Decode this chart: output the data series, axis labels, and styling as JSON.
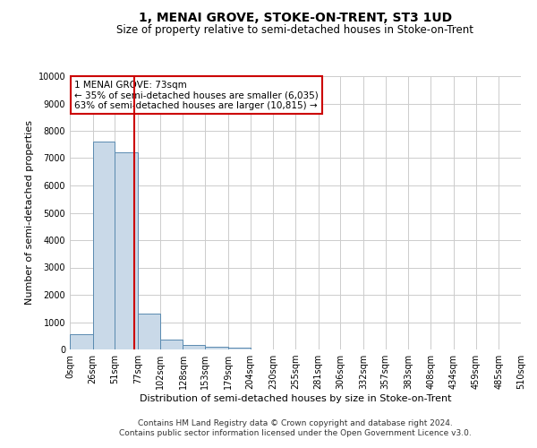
{
  "title": "1, MENAI GROVE, STOKE-ON-TRENT, ST3 1UD",
  "subtitle": "Size of property relative to semi-detached houses in Stoke-on-Trent",
  "xlabel": "Distribution of semi-detached houses by size in Stoke-on-Trent",
  "ylabel": "Number of semi-detached properties",
  "footer_line1": "Contains HM Land Registry data © Crown copyright and database right 2024.",
  "footer_line2": "Contains public sector information licensed under the Open Government Licence v3.0.",
  "annotation_title": "1 MENAI GROVE: 73sqm",
  "annotation_line1": "← 35% of semi-detached houses are smaller (6,035)",
  "annotation_line2": "63% of semi-detached houses are larger (10,815) →",
  "property_size_sqm": 73,
  "bar_left_edges": [
    0,
    26,
    51,
    77,
    102,
    128,
    153,
    179,
    204,
    230,
    255,
    281,
    306,
    332,
    357,
    383,
    408,
    434,
    459,
    485
  ],
  "bar_widths": [
    26,
    25,
    26,
    25,
    26,
    25,
    26,
    25,
    26,
    25,
    26,
    25,
    26,
    25,
    26,
    25,
    26,
    25,
    26,
    25
  ],
  "bar_heights": [
    550,
    7600,
    7200,
    1300,
    350,
    150,
    100,
    75,
    0,
    0,
    0,
    0,
    0,
    0,
    0,
    0,
    0,
    0,
    0,
    0
  ],
  "bar_color": "#c9d9e8",
  "bar_edge_color": "#5a8ab0",
  "vline_x": 73,
  "vline_color": "#cc0000",
  "ylim": [
    0,
    10000
  ],
  "yticks": [
    0,
    1000,
    2000,
    3000,
    4000,
    5000,
    6000,
    7000,
    8000,
    9000,
    10000
  ],
  "xlim": [
    0,
    510
  ],
  "xtick_labels": [
    "0sqm",
    "26sqm",
    "51sqm",
    "77sqm",
    "102sqm",
    "128sqm",
    "153sqm",
    "179sqm",
    "204sqm",
    "230sqm",
    "255sqm",
    "281sqm",
    "306sqm",
    "332sqm",
    "357sqm",
    "383sqm",
    "408sqm",
    "434sqm",
    "459sqm",
    "485sqm",
    "510sqm"
  ],
  "xtick_positions": [
    0,
    26,
    51,
    77,
    102,
    128,
    153,
    179,
    204,
    230,
    255,
    281,
    306,
    332,
    357,
    383,
    408,
    434,
    459,
    485,
    510
  ],
  "grid_color": "#cccccc",
  "bg_color": "#ffffff",
  "annotation_box_color": "#ffffff",
  "annotation_box_edge_color": "#cc0000",
  "title_fontsize": 10,
  "subtitle_fontsize": 8.5,
  "axis_label_fontsize": 8,
  "tick_fontsize": 7,
  "annotation_fontsize": 7.5,
  "footer_fontsize": 6.5
}
